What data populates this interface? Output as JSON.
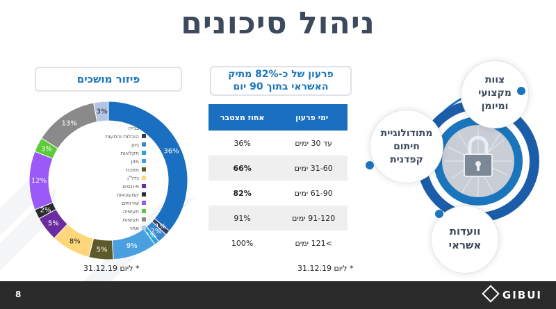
{
  "title": "ניהול סיכונים",
  "donut": {
    "label": "פיזור מושכים",
    "footnote": "* ליום 31.12.19",
    "legend": [
      "בנייה",
      "הובלות והסעות",
      "גיוון",
      "חקלאות",
      "מזון",
      "מתכת",
      "נדל\"ן",
      "פיננסים",
      "קמעונאות",
      "שירותים",
      "תעשייה",
      "תעשיות",
      "אחר"
    ]
  },
  "table": {
    "label_line1": "פרעון של כ-82% מתיק",
    "label_line2": "האשראי בתוך 90 יום",
    "headers": [
      "ימי פרעון",
      "אחוז מצטבר"
    ],
    "rows": [
      {
        "days": "עד 30 ימים",
        "pct": "36%",
        "bold": false
      },
      {
        "days": "31-60 ימים",
        "pct": "66%",
        "bold": true
      },
      {
        "days": "61-90 ימים",
        "pct": "82%",
        "bold": true
      },
      {
        "days": "91-120 ימים",
        "pct": "91%",
        "bold": false
      },
      {
        "days": ">121 ימים",
        "pct": "100%",
        "bold": false
      }
    ],
    "footnote": "* ליום 31.12.19"
  },
  "bubbles": {
    "top": [
      "צוות",
      "מקצועי",
      "ומיומן"
    ],
    "left": [
      "מתודולוגיית",
      "חיתום",
      "קפדנית"
    ],
    "bottom": [
      "וועדות",
      "אשראי"
    ]
  },
  "footer": {
    "page": "8",
    "logo": "GIBUI"
  },
  "chart_data": {
    "type": "pie",
    "title": "פיזור מושכים",
    "categories": [
      "בנייה",
      "הובלות והסעות",
      "גיוון",
      "חקלאות",
      "מזון",
      "מתכת",
      "נדל\"ן",
      "פיננסים",
      "קמעונאות",
      "שירותים",
      "תעשייה",
      "תעשיות",
      "אחר"
    ],
    "values": [
      36,
      1,
      2,
      1,
      9,
      5,
      8,
      5,
      2,
      12,
      3,
      13,
      3
    ],
    "value_labels": [
      "36%",
      "1%",
      "2%",
      "1%",
      "9%",
      "5%",
      "8%",
      "5%",
      "2%",
      "12%",
      "3%",
      "13%",
      "3%"
    ],
    "colors": [
      "#1b6fc0",
      "#2f3f5c",
      "#3a86d0",
      "#2aa6d9",
      "#4a9fe0",
      "#5c5a2a",
      "#ffd77a",
      "#6a2ca0",
      "#2b2b2b",
      "#9b59f5",
      "#5ccb3a",
      "#8a8a8a",
      "#b4c4e4"
    ],
    "label_colors": [
      "#fff",
      "#fff",
      "#fff",
      "#fff",
      "#fff",
      "#fff",
      "#222",
      "#fff",
      "#fff",
      "#fff",
      "#fff",
      "#fff",
      "#222"
    ]
  }
}
